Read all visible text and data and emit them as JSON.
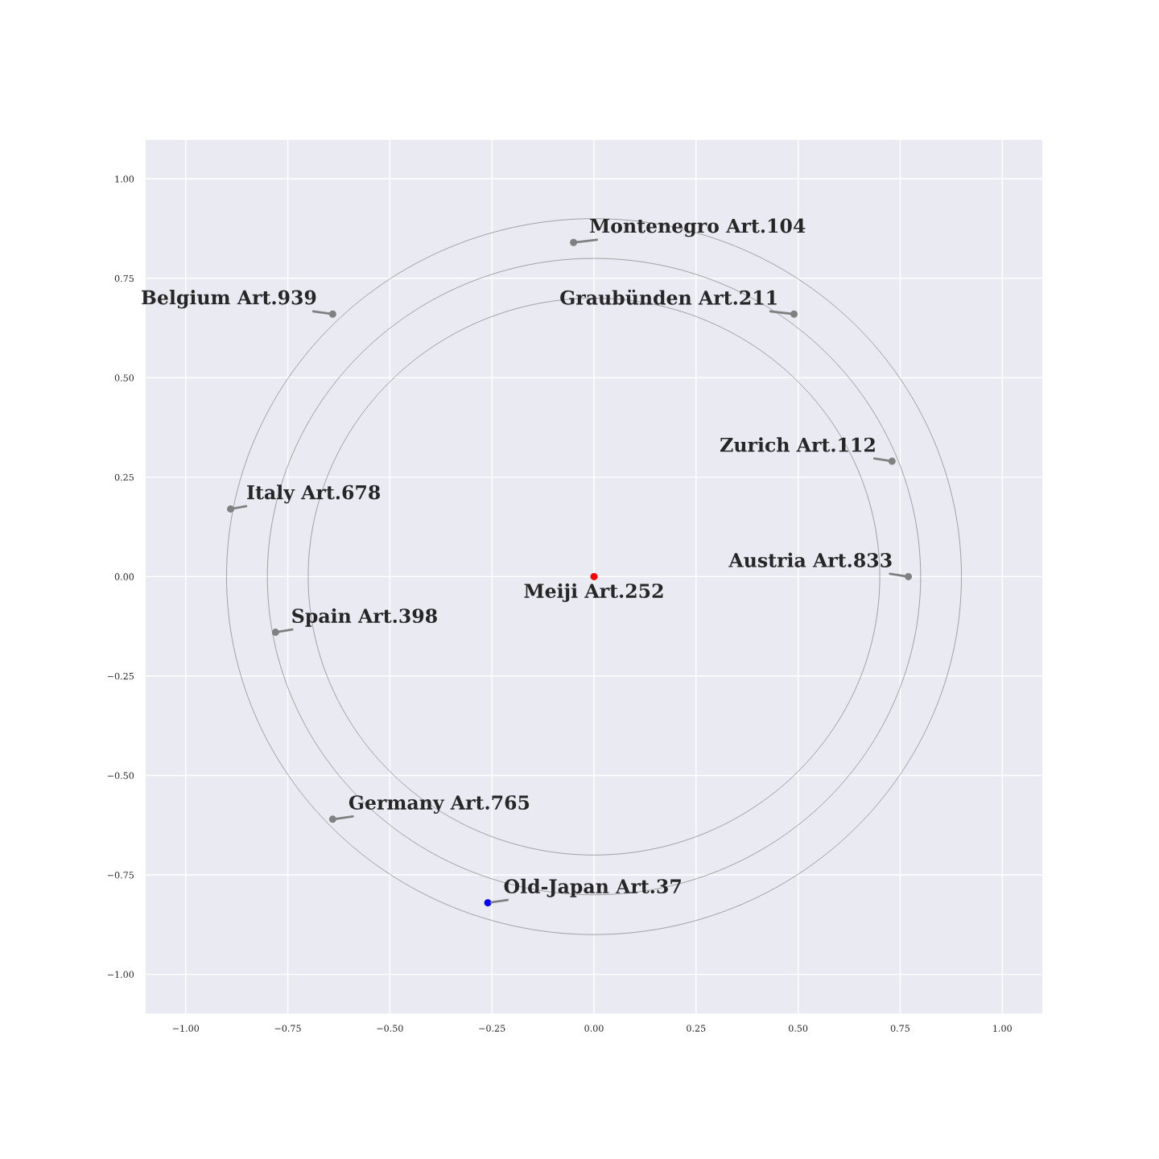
{
  "chart_data": {
    "type": "scatter",
    "xlim": [
      -1.1,
      1.1
    ],
    "ylim": [
      -1.1,
      1.1
    ],
    "xticks": [
      {
        "value": -1.0,
        "label": "−1.00"
      },
      {
        "value": -0.75,
        "label": "−0.75"
      },
      {
        "value": -0.5,
        "label": "−0.50"
      },
      {
        "value": -0.25,
        "label": "−0.25"
      },
      {
        "value": 0,
        "label": "0.00"
      },
      {
        "value": 0.25,
        "label": "0.25"
      },
      {
        "value": 0.5,
        "label": "0.50"
      },
      {
        "value": 0.75,
        "label": "0.75"
      },
      {
        "value": 1.0,
        "label": "1.00"
      }
    ],
    "yticks": [
      {
        "value": -1.0,
        "label": "−1.00"
      },
      {
        "value": -0.75,
        "label": "−0.75"
      },
      {
        "value": -0.5,
        "label": "−0.50"
      },
      {
        "value": -0.25,
        "label": "−0.25"
      },
      {
        "value": 0,
        "label": "0.00"
      },
      {
        "value": 0.25,
        "label": "0.25"
      },
      {
        "value": 0.5,
        "label": "0.50"
      },
      {
        "value": 0.75,
        "label": "0.75"
      },
      {
        "value": 1.0,
        "label": "1.00"
      }
    ],
    "grid": true,
    "series": [
      {
        "marker": "circle",
        "x": [
          -0.05,
          -0.64,
          0.49,
          0.73,
          -0.89,
          0.77,
          0,
          -0.78,
          -0.64,
          -0.26
        ],
        "values": [
          0.84,
          0.66,
          0.66,
          0.29,
          0.17,
          0,
          0,
          -0.14,
          -0.61,
          -0.82
        ],
        "colors": [
          "#808080",
          "#808080",
          "#808080",
          "#808080",
          "#808080",
          "#808080",
          "#ff0000",
          "#808080",
          "#808080",
          "#0000ff"
        ],
        "value_labels": [
          "Montenegro Art.104",
          "Belgium Art.939",
          "Graubünden Art.211",
          "Zurich Art.112",
          "Italy Art.678",
          "Austria Art.833",
          "Meiji Art.252",
          "Spain Art.398",
          "Germany Art.765",
          "Old-Japan Art.37"
        ]
      }
    ]
  }
}
